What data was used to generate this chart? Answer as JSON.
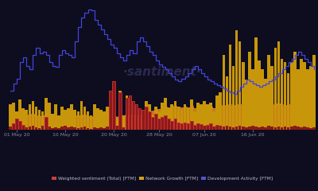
{
  "background_color": "#0d0d1f",
  "watermark": "·santiment·",
  "watermark_color": "#2a2a50",
  "x_labels": [
    "01 May 20",
    "10 May 20",
    "20 May 20",
    "28 May 20",
    "07 Jun 20",
    "16 Jun 20"
  ],
  "legend": [
    {
      "label": "Weighted sentiment (Total) [FTM]",
      "color": "#c84040"
    },
    {
      "label": "Network Growth [FTM]",
      "color": "#d4a020"
    },
    {
      "label": "Development Activity [FTM]",
      "color": "#5555cc"
    }
  ],
  "n_points": 95,
  "x_tick_positions": [
    2,
    17,
    32,
    46,
    60,
    75
  ],
  "network_growth": [
    3.5,
    3.8,
    2.5,
    4.2,
    3.0,
    2.8,
    3.5,
    4.0,
    3.2,
    2.8,
    2.5,
    4.5,
    3.8,
    2.2,
    3.5,
    2.0,
    3.2,
    2.8,
    3.0,
    3.5,
    2.8,
    2.5,
    4.0,
    3.2,
    2.5,
    2.0,
    3.5,
    3.0,
    2.8,
    2.5,
    3.2,
    5.0,
    4.5,
    1.5,
    5.5,
    2.0,
    4.8,
    4.2,
    3.8,
    3.0,
    2.5,
    2.8,
    4.0,
    3.5,
    2.0,
    3.2,
    2.5,
    3.8,
    4.5,
    3.0,
    3.5,
    4.0,
    3.2,
    2.8,
    3.5,
    3.0,
    4.2,
    2.5,
    3.8,
    3.5,
    4.0,
    3.5,
    3.8,
    2.5,
    4.8,
    5.2,
    10.5,
    7.5,
    12.0,
    9.0,
    14.0,
    12.5,
    9.5,
    7.0,
    11.0,
    8.5,
    13.0,
    9.8,
    8.5,
    7.2,
    10.5,
    9.0,
    11.5,
    12.5,
    10.0,
    9.5,
    8.0,
    9.5,
    11.0,
    8.5,
    10.0,
    9.5,
    8.5,
    9.0,
    10.5
  ],
  "weighted_sentiment": [
    0.4,
    0.8,
    1.5,
    1.2,
    0.6,
    0.3,
    0.4,
    0.5,
    0.3,
    0.2,
    0.5,
    1.8,
    0.4,
    0.2,
    0.3,
    0.2,
    0.4,
    0.5,
    0.3,
    0.4,
    0.3,
    0.2,
    0.3,
    0.4,
    0.2,
    0.1,
    0.3,
    0.2,
    0.3,
    0.2,
    0.4,
    5.5,
    6.8,
    0.5,
    5.2,
    0.3,
    4.5,
    4.8,
    4.0,
    3.5,
    3.0,
    2.8,
    3.2,
    2.5,
    1.8,
    2.2,
    1.5,
    1.8,
    2.0,
    1.5,
    1.2,
    1.5,
    1.0,
    0.8,
    1.0,
    0.8,
    1.2,
    0.6,
    0.8,
    0.7,
    0.5,
    0.6,
    0.8,
    0.4,
    0.6,
    0.5,
    0.4,
    0.5,
    0.4,
    0.3,
    0.4,
    0.5,
    0.4,
    0.3,
    0.4,
    0.5,
    0.4,
    0.3,
    0.4,
    0.3,
    0.5,
    0.4,
    0.3,
    0.4,
    0.3,
    0.4,
    0.3,
    0.4,
    0.5,
    0.4,
    0.3,
    0.4,
    0.3,
    0.2,
    0.3
  ],
  "dev_activity_line": [
    5.5,
    6.5,
    7.2,
    9.5,
    10.2,
    9.0,
    8.5,
    10.5,
    11.5,
    10.8,
    11.0,
    10.5,
    9.5,
    9.0,
    8.8,
    10.5,
    11.2,
    10.8,
    10.5,
    10.2,
    12.5,
    14.5,
    15.8,
    16.5,
    17.0,
    16.8,
    15.5,
    14.8,
    14.2,
    13.5,
    12.8,
    12.0,
    11.5,
    10.8,
    10.2,
    9.8,
    10.5,
    11.2,
    10.8,
    12.5,
    13.0,
    12.5,
    11.8,
    11.0,
    10.5,
    9.8,
    9.2,
    8.8,
    8.5,
    8.0,
    7.5,
    7.0,
    6.8,
    7.2,
    7.5,
    8.0,
    8.5,
    9.0,
    8.5,
    8.0,
    7.5,
    7.0,
    6.8,
    6.5,
    6.2,
    6.0,
    5.8,
    5.5,
    5.2,
    5.0,
    5.5,
    6.0,
    6.5,
    7.0,
    6.8,
    6.5,
    6.2,
    6.0,
    6.2,
    6.5,
    6.8,
    7.0,
    7.5,
    8.0,
    8.5,
    9.0,
    9.5,
    10.0,
    10.5,
    11.0,
    10.5,
    10.0,
    9.5,
    9.0,
    8.5
  ],
  "orange_area": [
    2.0,
    2.1,
    2.0,
    2.2,
    2.1,
    2.0,
    2.1,
    2.2,
    2.0,
    1.9,
    2.0,
    2.1,
    2.0,
    1.9,
    2.0,
    1.9,
    2.0,
    2.1,
    2.0,
    2.1,
    2.0,
    1.9,
    2.0,
    2.1,
    1.9,
    1.8,
    2.0,
    1.9,
    2.0,
    1.9,
    2.0,
    2.1,
    2.0,
    1.8,
    2.2,
    1.9,
    2.1,
    2.0,
    2.1,
    2.0,
    2.1,
    2.2,
    2.3,
    2.5,
    2.6,
    2.8,
    2.9,
    3.0,
    3.2,
    3.1,
    3.2,
    3.3,
    3.2,
    3.1,
    3.2,
    3.1,
    3.3,
    3.0,
    3.2,
    3.1,
    3.2,
    3.1,
    3.2,
    3.0,
    3.2,
    3.3,
    3.4,
    3.3,
    3.5,
    3.4,
    3.5,
    3.6,
    3.5,
    3.4,
    3.5,
    3.4,
    3.6,
    3.5,
    3.4,
    3.3,
    3.5,
    3.4,
    3.6,
    3.7,
    3.5,
    3.4,
    3.5,
    3.6,
    3.7,
    3.6,
    3.5,
    3.6,
    3.5,
    3.4,
    3.5
  ],
  "ylim": [
    0,
    18
  ]
}
